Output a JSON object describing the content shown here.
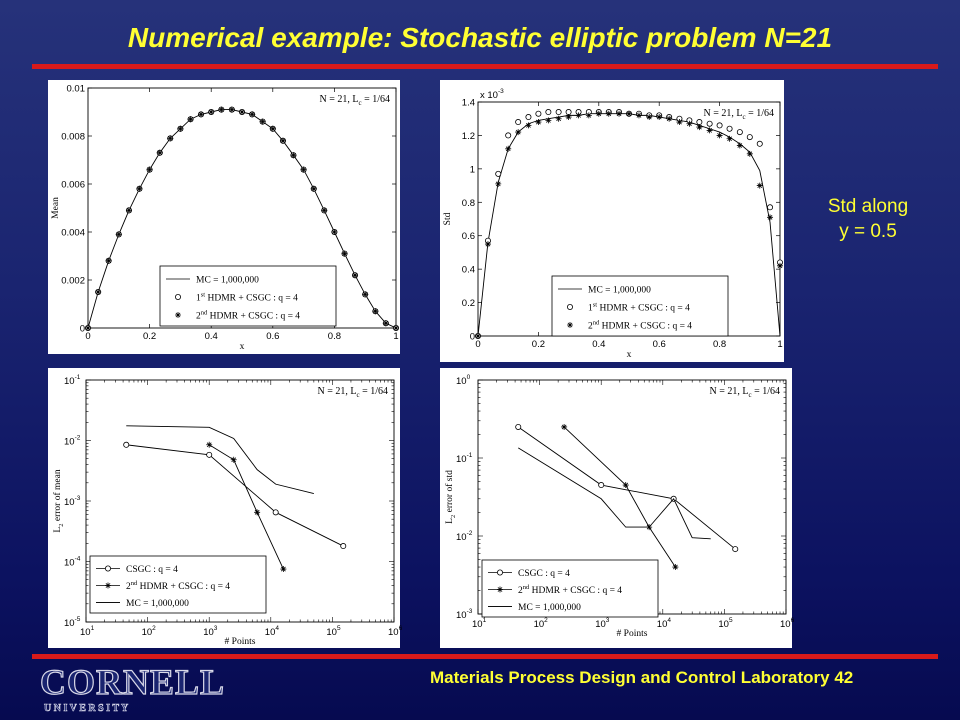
{
  "slide": {
    "title": "Numerical example: Stochastic elliptic problem N=21",
    "side_note_line1": "Std along",
    "side_note_line2": "y = 0.5",
    "footer_text": "Materials Process Design and Control Laboratory",
    "page_number": "42",
    "logo_word": "CORNELL",
    "logo_sub": "U N I V E R S I T Y",
    "colors": {
      "title": "#ffff33",
      "rule": "#d81a1a",
      "background": "#1a2470"
    }
  },
  "chart_data": [
    {
      "type": "line",
      "annotation": "N = 21, L_c = 1/64",
      "xlabel": "x",
      "ylabel": "Mean",
      "xlim": [
        0,
        1
      ],
      "ylim": [
        0,
        0.01
      ],
      "xticks": [
        "0",
        "0.2",
        "0.4",
        "0.6",
        "0.8",
        "1"
      ],
      "yticks": [
        "0",
        "0.002",
        "0.004",
        "0.006",
        "0.008",
        "0.01"
      ],
      "legend": [
        "MC = 1,000,000",
        "1st HDMR + CSGC : q = 4",
        "2nd HDMR + CSGC : q = 4"
      ],
      "legend_placement": "bottom-center",
      "x": [
        0,
        0.033,
        0.067,
        0.1,
        0.133,
        0.167,
        0.2,
        0.233,
        0.267,
        0.3,
        0.333,
        0.367,
        0.4,
        0.433,
        0.467,
        0.5,
        0.533,
        0.567,
        0.6,
        0.633,
        0.667,
        0.7,
        0.733,
        0.767,
        0.8,
        0.833,
        0.867,
        0.9,
        0.933,
        0.967,
        1.0
      ],
      "series": [
        {
          "name": "MC = 1,000,000",
          "marker": "none",
          "values": [
            0,
            0.0015,
            0.0028,
            0.0039,
            0.0049,
            0.0058,
            0.0066,
            0.0073,
            0.0079,
            0.0083,
            0.0087,
            0.0089,
            0.009,
            0.0091,
            0.0091,
            0.009,
            0.0089,
            0.0086,
            0.0083,
            0.0078,
            0.0072,
            0.0066,
            0.0058,
            0.0049,
            0.004,
            0.0031,
            0.0022,
            0.0014,
            0.0007,
            0.0002,
            0
          ]
        },
        {
          "name": "1st HDMR + CSGC : q = 4",
          "marker": "circle",
          "values": [
            0,
            0.0015,
            0.0028,
            0.0039,
            0.0049,
            0.0058,
            0.0066,
            0.0073,
            0.0079,
            0.0083,
            0.0087,
            0.0089,
            0.009,
            0.0091,
            0.0091,
            0.009,
            0.0089,
            0.0086,
            0.0083,
            0.0078,
            0.0072,
            0.0066,
            0.0058,
            0.0049,
            0.004,
            0.0031,
            0.0022,
            0.0014,
            0.0007,
            0.0002,
            0
          ]
        },
        {
          "name": "2nd HDMR + CSGC : q = 4",
          "marker": "star",
          "values": [
            0,
            0.0015,
            0.0028,
            0.0039,
            0.0049,
            0.0058,
            0.0066,
            0.0073,
            0.0079,
            0.0083,
            0.0087,
            0.0089,
            0.009,
            0.0091,
            0.0091,
            0.009,
            0.0089,
            0.0086,
            0.0083,
            0.0078,
            0.0072,
            0.0066,
            0.0058,
            0.0049,
            0.004,
            0.0031,
            0.0022,
            0.0014,
            0.0007,
            0.0002,
            0
          ]
        }
      ]
    },
    {
      "type": "line",
      "annotation": "N = 21, L_c = 1/64",
      "xlabel": "x",
      "ylabel": "Std",
      "exponent_label": "x 10^-3",
      "xlim": [
        0,
        1
      ],
      "ylim": [
        0,
        1.4
      ],
      "xticks": [
        "0",
        "0.2",
        "0.4",
        "0.6",
        "0.8",
        "1"
      ],
      "yticks": [
        "0",
        "0.2",
        "0.4",
        "0.6",
        "0.8",
        "1",
        "1.2",
        "1.4"
      ],
      "legend": [
        "MC = 1,000,000",
        "1st HDMR + CSGC : q = 4",
        "2nd HDMR + CSGC : q = 4"
      ],
      "legend_placement": "bottom-center",
      "x": [
        0,
        0.033,
        0.067,
        0.1,
        0.133,
        0.167,
        0.2,
        0.233,
        0.267,
        0.3,
        0.333,
        0.367,
        0.4,
        0.433,
        0.467,
        0.5,
        0.533,
        0.567,
        0.6,
        0.633,
        0.667,
        0.7,
        0.733,
        0.767,
        0.8,
        0.833,
        0.867,
        0.9,
        0.933,
        0.967,
        1.0
      ],
      "series": [
        {
          "name": "MC = 1,000,000",
          "marker": "none",
          "values": [
            0,
            0.56,
            0.92,
            1.12,
            1.22,
            1.27,
            1.29,
            1.3,
            1.31,
            1.32,
            1.32,
            1.33,
            1.33,
            1.33,
            1.33,
            1.33,
            1.32,
            1.32,
            1.31,
            1.3,
            1.29,
            1.28,
            1.26,
            1.24,
            1.22,
            1.19,
            1.15,
            1.1,
            0.99,
            0.68,
            0
          ]
        },
        {
          "name": "1st HDMR + CSGC : q = 4",
          "marker": "circle",
          "values": [
            0,
            0.57,
            0.97,
            1.2,
            1.28,
            1.31,
            1.33,
            1.34,
            1.34,
            1.34,
            1.34,
            1.34,
            1.34,
            1.34,
            1.34,
            1.33,
            1.33,
            1.32,
            1.32,
            1.31,
            1.3,
            1.29,
            1.28,
            1.27,
            1.26,
            1.24,
            1.22,
            1.19,
            1.15,
            0.77,
            0.44
          ]
        },
        {
          "name": "2nd HDMR + CSGC : q = 4",
          "marker": "star",
          "values": [
            0,
            0.55,
            0.91,
            1.12,
            1.22,
            1.26,
            1.28,
            1.29,
            1.3,
            1.31,
            1.32,
            1.32,
            1.33,
            1.33,
            1.33,
            1.33,
            1.32,
            1.31,
            1.31,
            1.3,
            1.28,
            1.27,
            1.25,
            1.23,
            1.2,
            1.18,
            1.14,
            1.09,
            0.9,
            0.71,
            0.42
          ]
        }
      ]
    },
    {
      "type": "line",
      "log_x": true,
      "log_y": true,
      "annotation": "N = 21, L_c = 1/64",
      "xlabel": "# Points",
      "ylabel": "L2 error of mean",
      "xlim": [
        10,
        1000000
      ],
      "ylim": [
        1e-05,
        0.1
      ],
      "xtick_exponents": [
        "1",
        "2",
        "3",
        "4",
        "5",
        "6"
      ],
      "ytick_exponents": [
        "-5",
        "-4",
        "-3",
        "-2",
        "-1"
      ],
      "legend": [
        "CSGC : q = 4",
        "2nd HDMR + CSGC : q = 4",
        "MC = 1,000,000"
      ],
      "legend_placement": "bottom-left",
      "series": [
        {
          "name": "CSGC : q = 4",
          "marker": "circle",
          "x": [
            45,
            1000,
            12000,
            150000
          ],
          "values": [
            0.0085,
            0.0058,
            0.00065,
            0.00018
          ]
        },
        {
          "name": "2nd HDMR + CSGC : q = 4",
          "marker": "star",
          "x": [
            1000,
            2500,
            6000,
            16000
          ],
          "values": [
            0.0085,
            0.0048,
            0.00065,
            7.5e-05
          ]
        },
        {
          "name": "MC = 1,000,000",
          "marker": "none",
          "x": [
            45,
            1000,
            2500,
            6000,
            12000,
            50000
          ],
          "values": [
            0.0175,
            0.0165,
            0.0108,
            0.0033,
            0.0019,
            0.00133
          ]
        }
      ]
    },
    {
      "type": "line",
      "log_x": true,
      "log_y": true,
      "annotation": "N = 21, L_c = 1/64",
      "xlabel": "# Points",
      "ylabel": "L2 error of std",
      "xlim": [
        10,
        1000000
      ],
      "ylim": [
        0.001,
        1
      ],
      "xtick_exponents": [
        "1",
        "2",
        "3",
        "4",
        "5",
        "6"
      ],
      "ytick_exponents": [
        "-3",
        "-2",
        "-1",
        "0"
      ],
      "legend": [
        "CSGC : q = 4",
        "2nd HDMR + CSGC : q = 4",
        "MC = 1,000,000"
      ],
      "legend_placement": "bottom-left",
      "series": [
        {
          "name": "CSGC : q = 4",
          "marker": "circle",
          "x": [
            45,
            1000,
            15000,
            150000
          ],
          "values": [
            0.25,
            0.045,
            0.03,
            0.0068
          ]
        },
        {
          "name": "2nd HDMR + CSGC : q = 4",
          "marker": "star",
          "x": [
            250,
            2500,
            6000,
            16000
          ],
          "values": [
            0.25,
            0.045,
            0.013,
            0.004
          ]
        },
        {
          "name": "MC = 1,000,000",
          "marker": "none",
          "x": [
            45,
            1000,
            2500,
            6000,
            15000,
            30000,
            60000
          ],
          "values": [
            0.135,
            0.03,
            0.013,
            0.013,
            0.03,
            0.0095,
            0.0092
          ]
        }
      ]
    }
  ]
}
